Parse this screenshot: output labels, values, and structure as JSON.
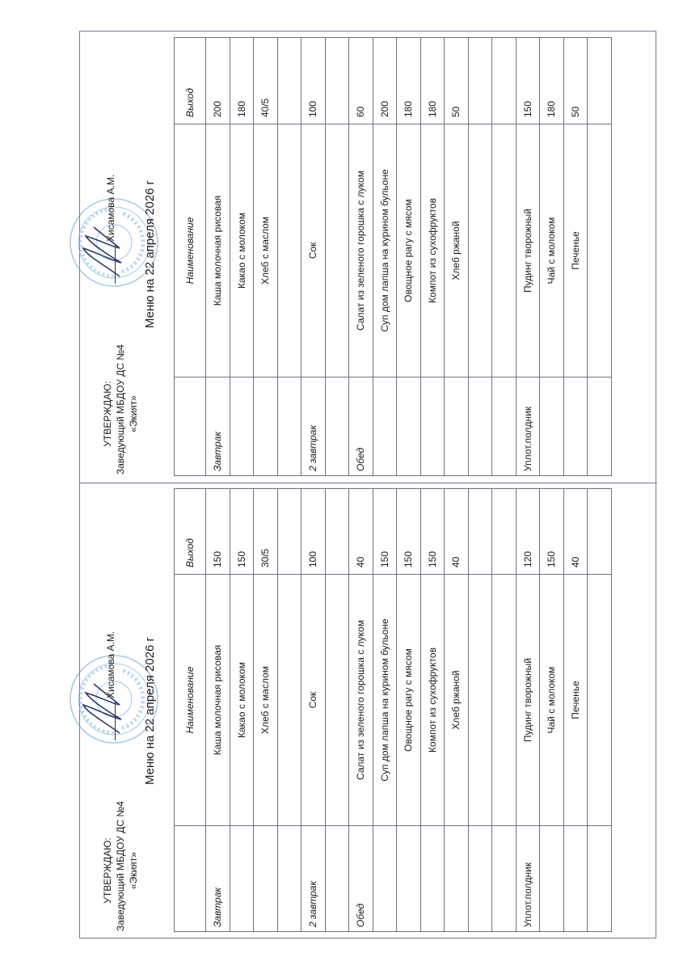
{
  "header": {
    "approve": "УТВЕРЖДАЮ:",
    "position": "Заведующий МБДОУ ДС №4",
    "org": "«Экият»",
    "signer": "Хисамова А.М.",
    "title": "Меню на 22 апреля 2026 г"
  },
  "columns": {
    "meal": "",
    "name": "Наименование",
    "output": "Выход"
  },
  "menus": [
    {
      "rows": [
        {
          "meal": "Завтрак",
          "name": "Каша молочная рисовая",
          "output": "150"
        },
        {
          "meal": "",
          "name": "Какао с молоком",
          "output": "150"
        },
        {
          "meal": "",
          "name": "Хлеб с маслом",
          "output": "30/5"
        },
        {
          "meal": "",
          "name": "",
          "output": ""
        },
        {
          "meal": "2 завтрак",
          "name": "Сок",
          "output": "100"
        },
        {
          "meal": "",
          "name": "",
          "output": ""
        },
        {
          "meal": "Обед",
          "name": "Салат из зеленого горошка с луком",
          "output": "40"
        },
        {
          "meal": "",
          "name": "Суп дом лапша на курином бульоне",
          "output": "150"
        },
        {
          "meal": "",
          "name": "Овощное рагу с мясом",
          "output": "150"
        },
        {
          "meal": "",
          "name": "Компот из сухофруктов",
          "output": "150"
        },
        {
          "meal": "",
          "name": "Хлеб ржаной",
          "output": "40"
        },
        {
          "meal": "",
          "name": "",
          "output": ""
        },
        {
          "meal": "",
          "name": "",
          "output": ""
        },
        {
          "meal": "Уплот.полдник",
          "name": "Пудинг творожный",
          "output": "120"
        },
        {
          "meal": "",
          "name": "Чай с молоком",
          "output": "150"
        },
        {
          "meal": "",
          "name": "Печенье",
          "output": "40"
        },
        {
          "meal": "",
          "name": "",
          "output": ""
        }
      ]
    },
    {
      "rows": [
        {
          "meal": "Завтрак",
          "name": "Каша молочная рисовая",
          "output": "200"
        },
        {
          "meal": "",
          "name": "Какао с молоком",
          "output": "180"
        },
        {
          "meal": "",
          "name": "Хлеб с маслом",
          "output": "40/5"
        },
        {
          "meal": "",
          "name": "",
          "output": ""
        },
        {
          "meal": "2 завтрак",
          "name": "Сок",
          "output": "100"
        },
        {
          "meal": "",
          "name": "",
          "output": ""
        },
        {
          "meal": "Обед",
          "name": "Салат из зеленого горошка с луком",
          "output": "60"
        },
        {
          "meal": "",
          "name": "Суп дом лапша на курином бульоне",
          "output": "200"
        },
        {
          "meal": "",
          "name": "Овощное рагу с мясом",
          "output": "180"
        },
        {
          "meal": "",
          "name": "Компот из сухофруктов",
          "output": "180"
        },
        {
          "meal": "",
          "name": "Хлеб ржаной",
          "output": "50"
        },
        {
          "meal": "",
          "name": "",
          "output": ""
        },
        {
          "meal": "",
          "name": "",
          "output": ""
        },
        {
          "meal": "Уплот.полдник",
          "name": "Пудинг творожный",
          "output": "150"
        },
        {
          "meal": "",
          "name": "Чай с молоком",
          "output": "180"
        },
        {
          "meal": "",
          "name": "Печенье",
          "output": "50"
        },
        {
          "meal": "",
          "name": "",
          "output": ""
        }
      ]
    }
  ],
  "colors": {
    "stamp": "#5b9bd5",
    "signature": "#2a3a6a",
    "border": "#6f6f7f"
  },
  "icons": {
    "stamp": "round-seal-stamp",
    "signature": "handwritten-signature"
  }
}
